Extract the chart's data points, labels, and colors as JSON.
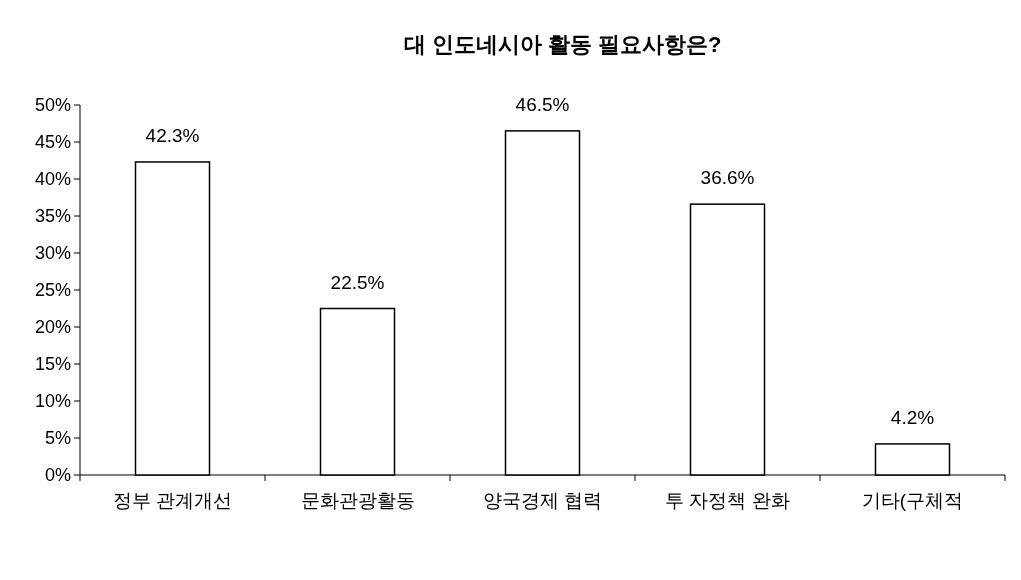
{
  "chart_data": {
    "type": "bar",
    "title": "대 인도네시아 활동 필요사항은?",
    "categories": [
      "정부 관계개선",
      "문화관광활동",
      "양국경제 협력",
      "투 자정책 완화",
      "기타(구체적"
    ],
    "values": [
      42.3,
      22.5,
      46.5,
      36.6,
      4.2
    ],
    "value_labels": [
      "42.3%",
      "22.5%",
      "46.5%",
      "36.6%",
      "4.2%"
    ],
    "color": "#ffffff",
    "ylim": [
      0,
      50
    ],
    "yticks": [
      {
        "value": 0,
        "label": "0%"
      },
      {
        "value": 5,
        "label": "5%"
      },
      {
        "value": 10,
        "label": "10%"
      },
      {
        "value": 15,
        "label": "15%"
      },
      {
        "value": 20,
        "label": "20%"
      },
      {
        "value": 25,
        "label": "25%"
      },
      {
        "value": 30,
        "label": "30%"
      },
      {
        "value": 35,
        "label": "35%"
      },
      {
        "value": 40,
        "label": "40%"
      },
      {
        "value": 45,
        "label": "45%"
      },
      {
        "value": 50,
        "label": "50%"
      }
    ],
    "grid": false
  }
}
